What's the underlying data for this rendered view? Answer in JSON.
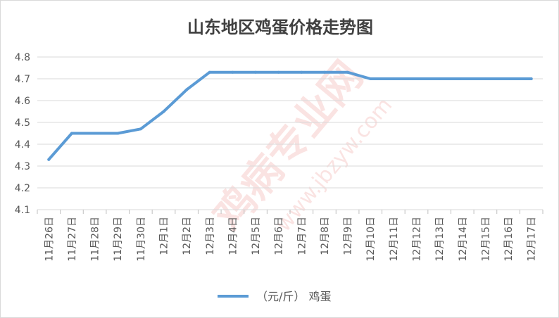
{
  "chart_data": {
    "type": "line",
    "title": "山东地区鸡蛋价格走势图",
    "categories": [
      "11月26日",
      "11月27日",
      "11月28日",
      "11月29日",
      "11月30日",
      "12月1日",
      "12月2日",
      "12月3日",
      "12月4日",
      "12月5日",
      "12月6日",
      "12月7日",
      "12月8日",
      "12月9日",
      "12月10日",
      "12月11日",
      "12月12日",
      "12月13日",
      "12月14日",
      "12月15日",
      "12月16日",
      "12月17日"
    ],
    "series": [
      {
        "name": "（元/斤） 鸡蛋",
        "color": "#5b9bd5",
        "values": [
          4.33,
          4.45,
          4.45,
          4.45,
          4.47,
          4.55,
          4.65,
          4.73,
          4.73,
          4.73,
          4.73,
          4.73,
          4.73,
          4.73,
          4.7,
          4.7,
          4.7,
          4.7,
          4.7,
          4.7,
          4.7,
          4.7
        ]
      }
    ],
    "ylim": [
      4.1,
      4.8
    ],
    "yticks": [
      "4.1",
      "4.2",
      "4.3",
      "4.4",
      "4.5",
      "4.6",
      "4.7",
      "4.8"
    ],
    "grid": true,
    "legend_position": "bottom"
  },
  "watermark": {
    "text_cn": "鸡病专业网",
    "text_url": "www.jbzyw.com"
  }
}
